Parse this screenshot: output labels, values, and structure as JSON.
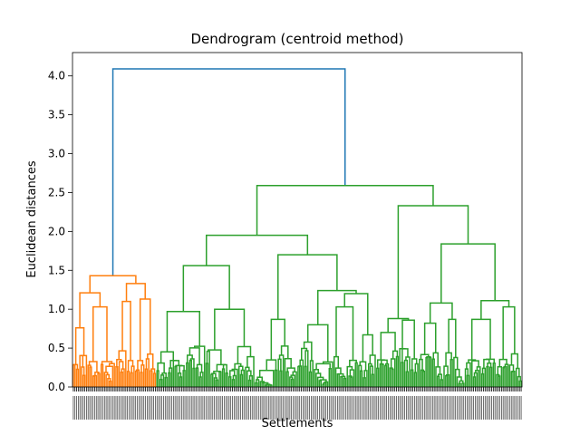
{
  "chart_data": {
    "type": "dendrogram",
    "title": "Dendrogram (centroid method)",
    "xlabel": "Settlements",
    "ylabel": "Euclidean distances",
    "ylim": [
      0,
      4.3
    ],
    "yticks": [
      "0.0",
      "0.5",
      "1.0",
      "1.5",
      "2.0",
      "2.5",
      "3.0",
      "3.5",
      "4.0"
    ],
    "x_tick_labels": "dense, illegible leaf labels",
    "colors": {
      "root": "#1f77b4",
      "cluster_1": "#ff7f0e",
      "cluster_2": "#2ca02c"
    },
    "clusters": [
      {
        "name": "cluster_1",
        "color": "#ff7f0e",
        "leaf_share": 0.2
      },
      {
        "name": "cluster_2",
        "color": "#2ca02c",
        "leaf_share": 0.8
      }
    ],
    "tree": {
      "h": 4.09,
      "c": "#1f77b4",
      "ch": [
        {
          "h": 1.43,
          "c": "#ff7f0e",
          "ch": [
            {
              "h": 1.21,
              "c": "#ff7f0e",
              "ch": [
                {
                  "h": 0.76,
                  "c": "#ff7f0e",
                  "ch": [
                    {
                      "n": 4,
                      "c": "#ff7f0e"
                    },
                    {
                      "n": 5,
                      "c": "#ff7f0e"
                    }
                  ]
                },
                {
                  "h": 1.03,
                  "c": "#ff7f0e",
                  "ch": [
                    {
                      "n": 8,
                      "c": "#ff7f0e"
                    },
                    {
                      "n": 9,
                      "c": "#ff7f0e"
                    }
                  ]
                }
              ]
            },
            {
              "h": 1.33,
              "c": "#ff7f0e",
              "ch": [
                {
                  "h": 1.1,
                  "c": "#ff7f0e",
                  "ch": [
                    {
                      "n": 7,
                      "c": "#ff7f0e"
                    },
                    {
                      "n": 5,
                      "c": "#ff7f0e"
                    }
                  ]
                },
                {
                  "h": 1.13,
                  "c": "#ff7f0e",
                  "ch": [
                    {
                      "n": 6,
                      "c": "#ff7f0e"
                    },
                    {
                      "n": 7,
                      "c": "#ff7f0e"
                    }
                  ]
                }
              ]
            }
          ]
        },
        {
          "h": 2.59,
          "c": "#2ca02c",
          "ch": [
            {
              "h": 1.95,
              "c": "#2ca02c",
              "ch": [
                {
                  "h": 1.56,
                  "c": "#2ca02c",
                  "ch": [
                    {
                      "h": 0.97,
                      "c": "#2ca02c",
                      "ch": [
                        {
                          "n": 18,
                          "c": "#2ca02c"
                        },
                        {
                          "n": 12,
                          "c": "#2ca02c"
                        }
                      ]
                    },
                    {
                      "h": 1.0,
                      "c": "#2ca02c",
                      "ch": [
                        {
                          "n": 14,
                          "c": "#2ca02c"
                        },
                        {
                          "n": 16,
                          "c": "#2ca02c"
                        }
                      ]
                    }
                  ]
                },
                {
                  "h": 1.7,
                  "c": "#2ca02c",
                  "ch": [
                    {
                      "h": 0.87,
                      "c": "#2ca02c",
                      "ch": [
                        {
                          "n": 14,
                          "c": "#2ca02c"
                        },
                        {
                          "n": 12,
                          "c": "#2ca02c"
                        }
                      ]
                    },
                    {
                      "h": 1.24,
                      "c": "#2ca02c",
                      "ch": [
                        {
                          "h": 0.8,
                          "c": "#2ca02c",
                          "ch": [
                            {
                              "n": 10,
                              "c": "#2ca02c"
                            },
                            {
                              "n": 12,
                              "c": "#2ca02c"
                            }
                          ]
                        },
                        {
                          "h": 1.2,
                          "c": "#2ca02c",
                          "ch": [
                            {
                              "h": 1.03,
                              "c": "#2ca02c",
                              "ch": [
                                {
                                  "n": 8,
                                  "c": "#2ca02c"
                                },
                                {
                                  "n": 7,
                                  "c": "#2ca02c"
                                }
                              ]
                            },
                            {
                              "h": 0.67,
                              "c": "#2ca02c",
                              "ch": [
                                {
                                  "n": 6,
                                  "c": "#2ca02c"
                                },
                                {
                                  "n": 5,
                                  "c": "#2ca02c"
                                }
                              ]
                            }
                          ]
                        }
                      ]
                    }
                  ]
                }
              ]
            },
            {
              "h": 2.33,
              "c": "#2ca02c",
              "ch": [
                {
                  "h": 0.88,
                  "c": "#2ca02c",
                  "ch": [
                    {
                      "h": 0.7,
                      "c": "#2ca02c",
                      "ch": [
                        {
                          "n": 8,
                          "c": "#2ca02c"
                        },
                        {
                          "n": 6,
                          "c": "#2ca02c"
                        }
                      ]
                    },
                    {
                      "h": 0.86,
                      "c": "#2ca02c",
                      "ch": [
                        {
                          "n": 7,
                          "c": "#2ca02c"
                        },
                        {
                          "n": 5,
                          "c": "#2ca02c"
                        }
                      ]
                    }
                  ]
                },
                {
                  "h": 1.84,
                  "c": "#2ca02c",
                  "ch": [
                    {
                      "h": 1.08,
                      "c": "#2ca02c",
                      "ch": [
                        {
                          "h": 0.82,
                          "c": "#2ca02c",
                          "ch": [
                            {
                              "n": 8,
                              "c": "#2ca02c"
                            },
                            {
                              "n": 7,
                              "c": "#2ca02c"
                            }
                          ]
                        },
                        {
                          "h": 0.87,
                          "c": "#2ca02c",
                          "ch": [
                            {
                              "n": 6,
                              "c": "#2ca02c"
                            },
                            {
                              "n": 7,
                              "c": "#2ca02c"
                            }
                          ]
                        }
                      ]
                    },
                    {
                      "h": 1.11,
                      "c": "#2ca02c",
                      "ch": [
                        {
                          "h": 0.87,
                          "c": "#2ca02c",
                          "ch": [
                            {
                              "n": 10,
                              "c": "#2ca02c"
                            },
                            {
                              "n": 9,
                              "c": "#2ca02c"
                            }
                          ]
                        },
                        {
                          "h": 1.03,
                          "c": "#2ca02c",
                          "ch": [
                            {
                              "n": 8,
                              "c": "#2ca02c"
                            },
                            {
                              "n": 8,
                              "c": "#2ca02c"
                            }
                          ]
                        }
                      ]
                    }
                  ]
                }
              ]
            }
          ]
        }
      ]
    }
  }
}
